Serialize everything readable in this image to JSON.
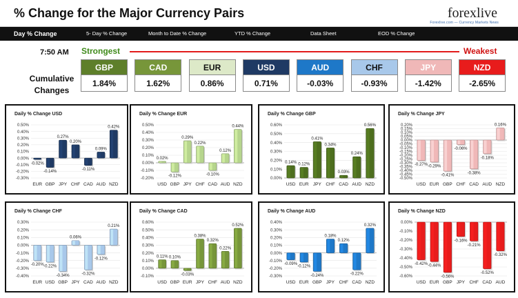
{
  "header": {
    "title": "% Change for the Major Currency Pairs",
    "logo": "forexlive",
    "logo_tagline": "Forexlive.com — Currency Markets News"
  },
  "tabs": [
    "Day % Change",
    "5- Day % Change",
    "Month to Date % Change",
    "YTD % Change",
    "Data Sheet",
    "EOD % Change"
  ],
  "time": "7:50 AM",
  "strongest_label": "Strongest",
  "weakest_label": "Weakest",
  "cumulative_label": "Cumulative Changes",
  "currencies": [
    {
      "code": "GBP",
      "value": "1.84%",
      "color": "#5e7f2a"
    },
    {
      "code": "CAD",
      "value": "1.62%",
      "color": "#77963a"
    },
    {
      "code": "EUR",
      "value": "0.86%",
      "color": "#dde9c8",
      "text": "#111111"
    },
    {
      "code": "USD",
      "value": "0.71%",
      "color": "#1f3a64"
    },
    {
      "code": "AUD",
      "value": "-0.03%",
      "color": "#1e78c8"
    },
    {
      "code": "CHF",
      "value": "-0.93%",
      "color": "#a8c8ea",
      "text": "#111111"
    },
    {
      "code": "JPY",
      "value": "-1.42%",
      "color": "#f0b8b8"
    },
    {
      "code": "NZD",
      "value": "-2.65%",
      "color": "#e81c1c"
    }
  ],
  "chart_data": [
    {
      "type": "bar",
      "title": "Daily % Change USD",
      "categories": [
        "EUR",
        "GBP",
        "JPY",
        "CHF",
        "CAD",
        "AUD",
        "NZD"
      ],
      "values": [
        -0.02,
        -0.14,
        0.27,
        0.2,
        -0.11,
        0.09,
        0.42
      ],
      "ylim": [
        -0.3,
        0.5
      ],
      "ticks": [
        "0.50%",
        "0.40%",
        "0.30%",
        "0.20%",
        "0.10%",
        "0.00%",
        "-0.10%",
        "-0.20%",
        "-0.30%"
      ],
      "color": "#1f3a64"
    },
    {
      "type": "bar",
      "title": "Daily % Change EUR",
      "categories": [
        "USD",
        "GBP",
        "JPY",
        "CHF",
        "CAD",
        "AUD",
        "NZD"
      ],
      "values": [
        0.02,
        -0.12,
        0.29,
        0.22,
        -0.1,
        0.12,
        0.44
      ],
      "ylim": [
        -0.2,
        0.5
      ],
      "ticks": [
        "0.50%",
        "0.40%",
        "0.30%",
        "0.20%",
        "0.10%",
        "0.00%",
        "-0.10%",
        "-0.20%"
      ],
      "color": "#b6d58d"
    },
    {
      "type": "bar",
      "title": "Daily % Change GBP",
      "categories": [
        "USD",
        "EUR",
        "JPY",
        "CHF",
        "CAD",
        "AUD",
        "NZD"
      ],
      "values": [
        0.14,
        0.12,
        0.41,
        0.34,
        0.03,
        0.24,
        0.56
      ],
      "ylim": [
        0,
        0.6
      ],
      "ticks": [
        "0.60%",
        "0.50%",
        "0.40%",
        "0.30%",
        "0.20%",
        "0.10%",
        "0.00%"
      ],
      "color": "#4d6e1e"
    },
    {
      "type": "bar",
      "title": "Daily % Change JPY",
      "categories": [
        "USD",
        "EUR",
        "GBP",
        "CHF",
        "CAD",
        "AUD",
        "NZD"
      ],
      "values": [
        -0.27,
        -0.29,
        -0.41,
        -0.06,
        -0.38,
        -0.18,
        0.16
      ],
      "ylim": [
        -0.5,
        0.2
      ],
      "ticks": [
        "0.20%",
        "0.15%",
        "0.10%",
        "0.05%",
        "0.00%",
        "-0.05%",
        "-0.10%",
        "-0.15%",
        "-0.20%",
        "-0.25%",
        "-0.30%",
        "-0.35%",
        "-0.40%",
        "-0.45%",
        "-0.50%"
      ],
      "color": "#f0b8b8"
    },
    {
      "type": "bar",
      "title": "Daily % Change CHF",
      "categories": [
        "EUR",
        "USD",
        "GBP",
        "JPY",
        "CAD",
        "AUD",
        "NZD"
      ],
      "values": [
        -0.2,
        -0.22,
        -0.34,
        0.06,
        -0.32,
        -0.12,
        0.21
      ],
      "ylim": [
        -0.4,
        0.3
      ],
      "ticks": [
        "0.30%",
        "0.20%",
        "0.10%",
        "0.00%",
        "-0.10%",
        "-0.20%",
        "-0.30%",
        "-0.40%"
      ],
      "color": "#a8c8ea"
    },
    {
      "type": "bar",
      "title": "Daily % Change CAD",
      "categories": [
        "USD",
        "GBP",
        "EUR",
        "JPY",
        "CHF",
        "AUD",
        "NZD"
      ],
      "values": [
        0.11,
        0.1,
        -0.03,
        0.38,
        0.32,
        0.22,
        0.52
      ],
      "ylim": [
        -0.1,
        0.6
      ],
      "ticks": [
        "0.60%",
        "0.50%",
        "0.40%",
        "0.30%",
        "0.20%",
        "0.10%",
        "0.00%",
        "-0.10%"
      ],
      "color": "#77963a"
    },
    {
      "type": "bar",
      "title": "Daily % Change AUD",
      "categories": [
        "USD",
        "EUR",
        "GBP",
        "JPY",
        "CHF",
        "CAD",
        "NZD"
      ],
      "values": [
        -0.09,
        -0.12,
        -0.24,
        0.18,
        0.12,
        -0.22,
        0.32
      ],
      "ylim": [
        -0.3,
        0.4
      ],
      "ticks": [
        "0.40%",
        "0.30%",
        "0.20%",
        "0.10%",
        "0.00%",
        "-0.10%",
        "-0.20%",
        "-0.30%"
      ],
      "color": "#1e78c8"
    },
    {
      "type": "bar",
      "title": "Daily % Change NZD",
      "categories": [
        "USD",
        "EUR",
        "GBP",
        "JPY",
        "CHF",
        "CAD",
        "AUD"
      ],
      "values": [
        -0.42,
        -0.44,
        -0.56,
        -0.16,
        -0.21,
        -0.52,
        -0.32
      ],
      "ylim": [
        -0.6,
        0
      ],
      "ticks": [
        "0.00%",
        "-0.10%",
        "-0.20%",
        "-0.30%",
        "-0.40%",
        "-0.50%",
        "-0.60%"
      ],
      "color": "#e81c1c"
    }
  ]
}
